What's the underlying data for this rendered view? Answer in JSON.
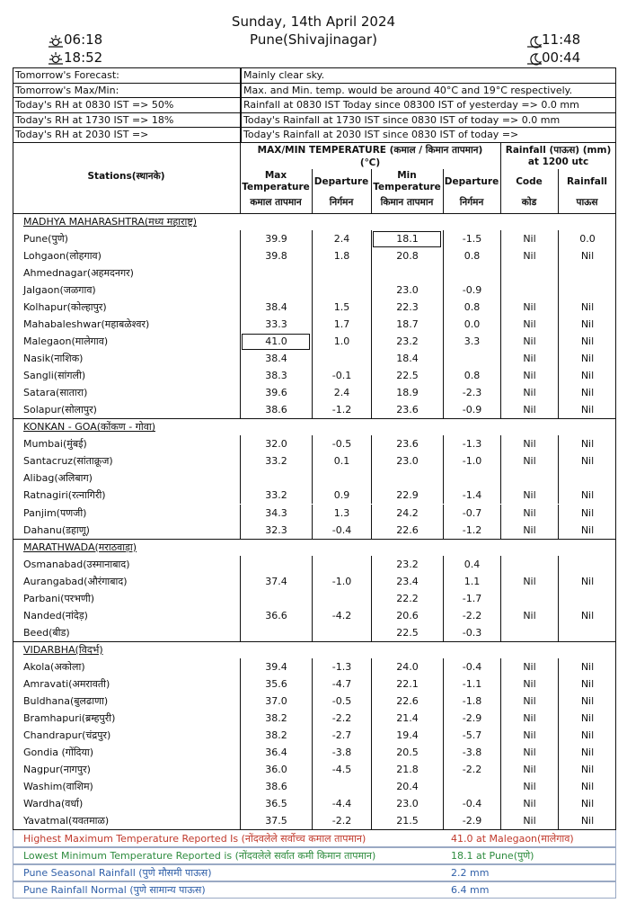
{
  "header": {
    "date": "Sunday, 14th April 2024",
    "station": "Pune(Shivajinagar)",
    "sunrise": "06:18",
    "sunset": "18:52",
    "moonrise": "11:48",
    "moonset": "00:44"
  },
  "info": [
    [
      "Tomorrow's Forecast:",
      "Mainly clear sky."
    ],
    [
      "Tomorrow's Max/Min:",
      "Max. and Min. temp. would be around 40°C and 19°C respectively."
    ],
    [
      "Today's RH at 0830 IST => 50%",
      "Rainfall at 0830 IST Today since 08300 IST of yesterday => 0.0 mm"
    ],
    [
      "Today's RH at 1730 IST => 18%",
      "Today's Rainfall at 1730 IST since 0830 IST of today => 0.0 mm"
    ],
    [
      "Today's RH at 2030 IST =>",
      "Today's Rainfall at 2030 IST since 0830 IST of today =>"
    ]
  ],
  "table": {
    "head": {
      "stations": "Stations(स्थानके)",
      "temp_group": "MAX/MIN TEMPERATURE (कमाल / किमान तापमान)",
      "temp_unit": "(℃)",
      "rain_group": "Rainfall (पाऊस) (mm) at 1200 utc",
      "columns": [
        [
          "Max Temperature",
          "कमाल तापमान"
        ],
        [
          "Departure",
          "निर्गमन"
        ],
        [
          "Min Temperature",
          "किमान तापमान"
        ],
        [
          "Departure",
          "निर्गमन"
        ],
        [
          "Code",
          "कोड"
        ],
        [
          "Rainfall",
          "पाऊस"
        ]
      ]
    },
    "sections": [
      {
        "name": "MADHYA MAHARASHTRA(मध्य महाराष्ट्र)",
        "rows": [
          [
            "Pune(पुणे)",
            "39.9",
            "2.4",
            "18.1",
            "-1.5",
            "Nil",
            "0.0"
          ],
          [
            "Lohgaon(लोहगाव)",
            "39.8",
            "1.8",
            "20.8",
            "0.8",
            "Nil",
            "Nil"
          ],
          [
            "Ahmednagar(अहमदनगर)",
            null,
            null,
            null,
            null,
            null,
            null
          ],
          [
            "Jalgaon(जळगाव)",
            null,
            null,
            "23.0",
            "-0.9",
            null,
            null
          ],
          [
            "Kolhapur(कोल्हापुर)",
            "38.4",
            "1.5",
            "22.3",
            "0.8",
            "Nil",
            "Nil"
          ],
          [
            "Mahabaleshwar(महाबळेश्वर)",
            "33.3",
            "1.7",
            "18.7",
            "0.0",
            "Nil",
            "Nil"
          ],
          [
            "Malegaon(मालेगाव)",
            "41.0",
            "1.0",
            "23.2",
            "3.3",
            "Nil",
            "Nil"
          ],
          [
            "Nasik(नाशिक)",
            "38.4",
            null,
            "18.4",
            null,
            "Nil",
            "Nil"
          ],
          [
            "Sangli(सांगली)",
            "38.3",
            "-0.1",
            "22.5",
            "0.8",
            "Nil",
            "Nil"
          ],
          [
            "Satara(सातारा)",
            "39.6",
            "2.4",
            "18.9",
            "-2.3",
            "Nil",
            "Nil"
          ],
          [
            "Solapur(सोलापुर)",
            "38.6",
            "-1.2",
            "23.6",
            "-0.9",
            "Nil",
            "Nil"
          ]
        ]
      },
      {
        "name": "KONKAN - GOA(कोंकण - गोवा)",
        "rows": [
          [
            "Mumbai(मुंबई)",
            "32.0",
            "-0.5",
            "23.6",
            "-1.3",
            "Nil",
            "Nil"
          ],
          [
            "Santacruz(सांताक्रूज)",
            "33.2",
            "0.1",
            "23.0",
            "-1.0",
            "Nil",
            "Nil"
          ],
          [
            "Alibag(अलिबाग)",
            null,
            null,
            null,
            null,
            null,
            null
          ],
          [
            "Ratnagiri(रत्नागिरी)",
            "33.2",
            "0.9",
            "22.9",
            "-1.4",
            "Nil",
            "Nil"
          ],
          [
            "Panjim(पणजी)",
            "34.3",
            "1.3",
            "24.2",
            "-0.7",
            "Nil",
            "Nil"
          ],
          [
            "Dahanu(डहाणू)",
            "32.3",
            "-0.4",
            "22.6",
            "-1.2",
            "Nil",
            "Nil"
          ]
        ]
      },
      {
        "name": "MARATHWADA(मराठवाड़ा)",
        "rows": [
          [
            "Osmanabad(उस्मानाबाद)",
            null,
            null,
            "23.2",
            "0.4",
            null,
            null
          ],
          [
            "Aurangabad(औरंगाबाद)",
            "37.4",
            "-1.0",
            "23.4",
            "1.1",
            "Nil",
            "Nil"
          ],
          [
            "Parbani(परभणी)",
            null,
            null,
            "22.2",
            "-1.7",
            null,
            null
          ],
          [
            "Nanded(नांदेड़)",
            "36.6",
            "-4.2",
            "20.6",
            "-2.2",
            "Nil",
            "Nil"
          ],
          [
            "Beed(बीड)",
            null,
            null,
            "22.5",
            "-0.3",
            null,
            null
          ]
        ]
      },
      {
        "name": "VIDARBHA(विदर्भ)",
        "rows": [
          [
            "Akola(अकोला)",
            "39.4",
            "-1.3",
            "24.0",
            "-0.4",
            "Nil",
            "Nil"
          ],
          [
            "Amravati(अमरावती)",
            "35.6",
            "-4.7",
            "22.1",
            "-1.1",
            "Nil",
            "Nil"
          ],
          [
            "Buldhana(बुलढाणा)",
            "37.0",
            "-0.5",
            "22.6",
            "-1.8",
            "Nil",
            "Nil"
          ],
          [
            "Bramhapuri(ब्रम्हपुरी)",
            "38.2",
            "-2.2",
            "21.4",
            "-2.9",
            "Nil",
            "Nil"
          ],
          [
            "Chandrapur(चंद्रपुर)",
            "38.2",
            "-2.7",
            "19.4",
            "-5.7",
            "Nil",
            "Nil"
          ],
          [
            "Gondia (गोंदिया)",
            "36.4",
            "-3.8",
            "20.5",
            "-3.8",
            "Nil",
            "Nil"
          ],
          [
            "Nagpur(नागपुर)",
            "36.0",
            "-4.5",
            "21.8",
            "-2.2",
            "Nil",
            "Nil"
          ],
          [
            "Washim(वाशिम)",
            "38.6",
            null,
            "20.4",
            null,
            "Nil",
            "Nil"
          ],
          [
            "Wardha(वर्धा)",
            "36.5",
            "-4.4",
            "23.0",
            "-0.4",
            "Nil",
            "Nil"
          ],
          [
            "Yavatmal(यवतमाळ)",
            "37.5",
            "-2.2",
            "21.5",
            "-2.9",
            "Nil",
            "Nil"
          ]
        ]
      }
    ]
  },
  "footer": [
    [
      "Highest Maximum Temperature Reported Is (नोंदवलेले सर्वोच्च कमाल तापमान)",
      "41.0 at Malegaon(मालेगाव)"
    ],
    [
      "Lowest Minimum Temperature Reported is (नोंदवलेले सर्वात कमी किमान तापमान)",
      "18.1 at Pune(पुणे)"
    ],
    [
      "Pune Seasonal Rainfall (पुणे मौसमी पाऊस)",
      "2.2 mm"
    ],
    [
      "Pune Rainfall Normal (पुणे सामान्य पाऊस)",
      "6.4 mm"
    ]
  ]
}
